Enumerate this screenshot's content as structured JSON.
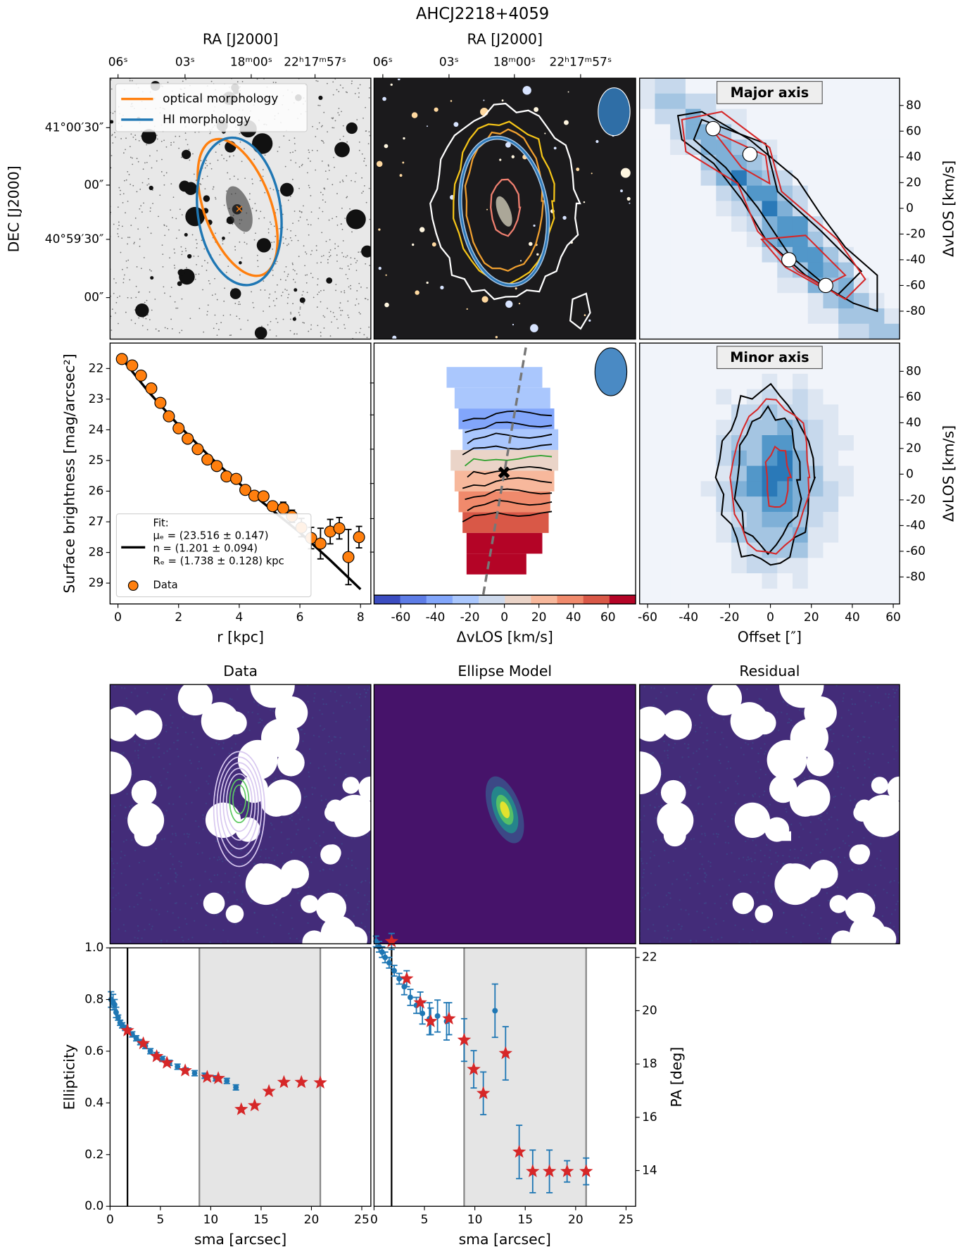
{
  "title": "AHCJ2218+4059",
  "chart_data": [
    {
      "type": "image",
      "xlabel": "RA [J2000]",
      "xtick_labels": [
        "06ˢ",
        "03ˢ",
        "18ᵐ00ˢ",
        "22ʰ17ᵐ57ˢ"
      ],
      "ylabel": "DEC [J2000]",
      "ytick_labels": [
        "41°00′30″",
        "00″",
        "40°59′30″",
        "00″"
      ],
      "legend": [
        {
          "name": "optical morphology",
          "color": "#ff7f0e"
        },
        {
          "name": "HI morphology",
          "color": "#1f77b4"
        }
      ]
    },
    {
      "type": "image",
      "xlabel": "RA [J2000]",
      "xtick_labels": [
        "06ˢ",
        "03ˢ",
        "18ᵐ00ˢ",
        "22ʰ17ᵐ57ˢ"
      ]
    },
    {
      "type": "pv",
      "label": "Major axis",
      "ylabel": "ΔvLOS [km/s]",
      "xlim": [
        -63.9,
        63.1
      ],
      "ylim": [
        -101.7,
        101.2
      ],
      "yticks": [
        -80,
        -60,
        -40,
        -20,
        0,
        20,
        40,
        60,
        80
      ],
      "x": [
        -28,
        -10,
        9,
        27
      ],
      "values": [
        62,
        42,
        -40,
        -60
      ]
    },
    {
      "type": "errorbar",
      "xlabel": "r [kpc]",
      "ylabel": "Surface brightness [mag/arcsec²]",
      "xlim": [
        -0.26,
        8.34
      ],
      "ylim": [
        29.68,
        21.17
      ],
      "xticks": [
        0,
        2,
        4,
        6,
        8
      ],
      "yticks": [
        22,
        23,
        24,
        25,
        26,
        27,
        28,
        29
      ],
      "legend_loc": "lower left",
      "series": [
        {
          "name": "Data",
          "color": "#ff7f0e",
          "marker": "circle",
          "x": [
            0.13,
            0.47,
            0.76,
            1.1,
            1.4,
            1.68,
            2.0,
            2.3,
            2.63,
            2.95,
            3.26,
            3.58,
            3.9,
            4.2,
            4.5,
            4.8,
            5.1,
            5.45,
            5.74,
            6.05,
            6.37,
            6.68,
            7.0,
            7.3,
            7.6,
            7.95
          ],
          "values": [
            21.69,
            21.9,
            22.23,
            22.65,
            23.12,
            23.56,
            23.95,
            24.29,
            24.63,
            24.97,
            25.18,
            25.52,
            25.6,
            25.96,
            26.15,
            26.17,
            26.49,
            26.56,
            26.82,
            27.19,
            27.53,
            27.71,
            27.32,
            27.21,
            28.15,
            27.5
          ],
          "errors": [
            0.04,
            0.04,
            0.04,
            0.04,
            0.04,
            0.05,
            0.05,
            0.05,
            0.06,
            0.06,
            0.07,
            0.07,
            0.08,
            0.08,
            0.1,
            0.1,
            0.15,
            0.2,
            0.2,
            0.3,
            0.35,
            0.5,
            0.4,
            0.35,
            0.9,
            0.35
          ]
        }
      ],
      "fit": {
        "name": "Fit:",
        "lines": [
          "μₑ = (23.516 ± 0.147)",
          "n = (1.201 ± 0.094)",
          "Rₑ = (1.738 ± 0.128) kpc"
        ],
        "color": "#000000",
        "x": [
          0.15,
          1,
          2,
          3,
          4,
          5,
          6,
          7,
          8
        ],
        "values": [
          21.7,
          22.75,
          23.85,
          24.85,
          25.75,
          26.55,
          27.35,
          28.25,
          29.2
        ]
      }
    },
    {
      "type": "colorbar",
      "xlabel": "ΔvLOS [km/s]",
      "xlim": [
        -75.5,
        76
      ],
      "xticks": [
        -60,
        -40,
        -20,
        0,
        20,
        40,
        60
      ]
    },
    {
      "type": "pv",
      "label": "Minor axis",
      "ylabel": "ΔvLOS [km/s]",
      "xlabel": "Offset [″]",
      "xlim": [
        -63.9,
        63.1
      ],
      "ylim": [
        -101,
        102
      ],
      "xticks": [
        -60,
        -40,
        -20,
        0,
        20,
        40,
        60
      ],
      "yticks": [
        -80,
        -60,
        -40,
        -20,
        0,
        20,
        40,
        60,
        80
      ]
    },
    {
      "type": "image",
      "title": "Data"
    },
    {
      "type": "image",
      "title": "Ellipse Model"
    },
    {
      "type": "image",
      "title": "Residual"
    },
    {
      "type": "errorbar",
      "xlabel": "sma [arcsec]",
      "ylabel": "Ellipticity",
      "xlim": [
        0,
        25.9
      ],
      "ylim": [
        0,
        1
      ],
      "xticks": [
        0,
        5,
        10,
        15,
        20,
        25
      ],
      "yticks": [
        {
          "value": 0,
          "label": "0.0"
        },
        0.2,
        0.4,
        0.6,
        0.8,
        {
          "value": 1,
          "label": "1.0"
        }
      ],
      "vlines": [
        1.73
      ],
      "span": [
        8.87,
        20.88
      ],
      "series": [
        {
          "color": "#1f77b4",
          "marker": "circle",
          "x": [
            0.1,
            0.3,
            0.45,
            0.6,
            0.8,
            1.0,
            1.2,
            1.5,
            1.8,
            2.2,
            2.6,
            3.0,
            3.5,
            4.0,
            4.6,
            5.2,
            5.9,
            6.7,
            7.5,
            8.4,
            9.4,
            10.5,
            11.6,
            12.5
          ],
          "values": [
            0.8,
            0.79,
            0.78,
            0.75,
            0.73,
            0.71,
            0.7,
            0.69,
            0.68,
            0.665,
            0.65,
            0.635,
            0.62,
            0.6,
            0.585,
            0.57,
            0.555,
            0.54,
            0.525,
            0.515,
            0.505,
            0.495,
            0.485,
            0.46
          ],
          "errors": [
            0.03,
            0.03,
            0.02,
            0.02,
            0.01,
            0.01,
            0.01,
            0.01,
            0.01,
            0.01,
            0.01,
            0.01,
            0.01,
            0.01,
            0.01,
            0.01,
            0.01,
            0.01,
            0.01,
            0.01,
            0.01,
            0.01,
            0.01,
            0.01
          ]
        },
        {
          "color": "#d62728",
          "marker": "star",
          "x": [
            1.73,
            3.3,
            4.63,
            5.65,
            7.46,
            9.65,
            10.75,
            13.03,
            14.36,
            15.78,
            17.27,
            19.0,
            20.88
          ],
          "values": [
            0.68,
            0.63,
            0.58,
            0.555,
            0.525,
            0.5,
            0.495,
            0.375,
            0.39,
            0.445,
            0.48,
            0.48,
            0.478
          ]
        }
      ]
    },
    {
      "type": "errorbar",
      "xlabel": "sma [arcsec]",
      "ylabel": "PA [deg]",
      "y_axis_side": "right",
      "xlim": [
        0,
        25.95
      ],
      "ylim": [
        12.66,
        22.36
      ],
      "xticks": [
        0,
        5,
        10,
        15,
        20,
        25
      ],
      "yticks": [
        14,
        16,
        18,
        20,
        22
      ],
      "vlines": [
        1.74
      ],
      "span": [
        8.94,
        21.04
      ],
      "series": [
        {
          "color": "#1f77b4",
          "marker": "circle",
          "x": [
            0.2,
            0.5,
            0.8,
            1.1,
            1.5,
            2.0,
            2.5,
            3.0,
            3.6,
            4.2,
            4.8,
            5.5,
            6.3,
            7.2,
            12.0
          ],
          "values": [
            22.6,
            22.4,
            22.2,
            22.0,
            21.8,
            21.5,
            21.2,
            20.9,
            20.5,
            20.2,
            19.9,
            19.7,
            19.8,
            19.6,
            20.0
          ],
          "errors": [
            0.2,
            0.2,
            0.2,
            0.2,
            0.2,
            0.2,
            0.2,
            0.3,
            0.3,
            0.3,
            0.4,
            0.6,
            0.6,
            0.7,
            1.0
          ]
        },
        {
          "color": "#d62728",
          "marker": "star",
          "x": [
            1.74,
            3.24,
            4.59,
            5.62,
            7.44,
            8.94,
            9.89,
            10.84,
            13.05,
            14.4,
            15.74,
            17.4,
            19.15,
            21.04
          ],
          "values": [
            22.6,
            21.2,
            20.3,
            19.6,
            19.7,
            18.9,
            17.8,
            16.9,
            18.4,
            14.7,
            13.97,
            13.97,
            13.97,
            13.97
          ],
          "errors": [
            0.3,
            0.3,
            0.4,
            0.5,
            0.6,
            0.8,
            0.7,
            0.8,
            1.0,
            1.0,
            0.8,
            0.8,
            0.4,
            0.5
          ]
        }
      ]
    }
  ]
}
